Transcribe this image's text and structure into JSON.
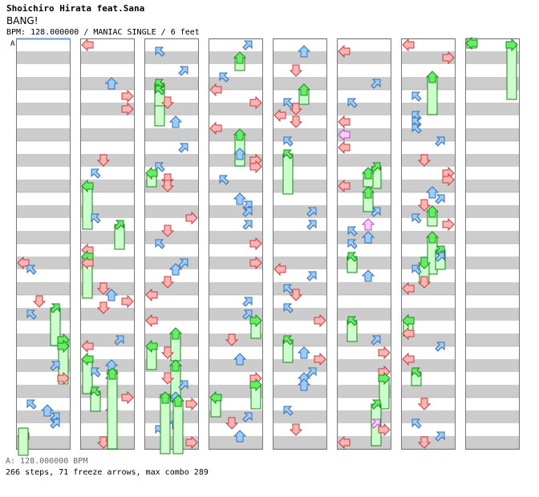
{
  "song": {
    "artist": "Shoichiro Hirata feat.Sana",
    "title": "BANG!",
    "meta": "BPM: 128.000000 / MANIAC SINGLE / 6 feet"
  },
  "chart": {
    "bpm_marker_label": "A",
    "bpm_legend": "A: 128.000000 BPM",
    "stats": "266 steps, 71 freeze arrows, max combo 289",
    "columns": 8,
    "colors": {
      "stripe": "#cccccc",
      "column_border": "#777777",
      "red_arrow": "#ffb3b3",
      "red_stroke": "#c04040",
      "blue_arrow": "#99ccff",
      "blue_stroke": "#3a6ea8",
      "green_arrow": "#66ee66",
      "green_stroke": "#1a8a1a",
      "pink_arrow": "#ffccff",
      "pink_stroke": "#b050b0",
      "freeze": "#ccffcc",
      "freeze_stroke": "#208020",
      "bpm_line": "#6699cc"
    }
  }
}
